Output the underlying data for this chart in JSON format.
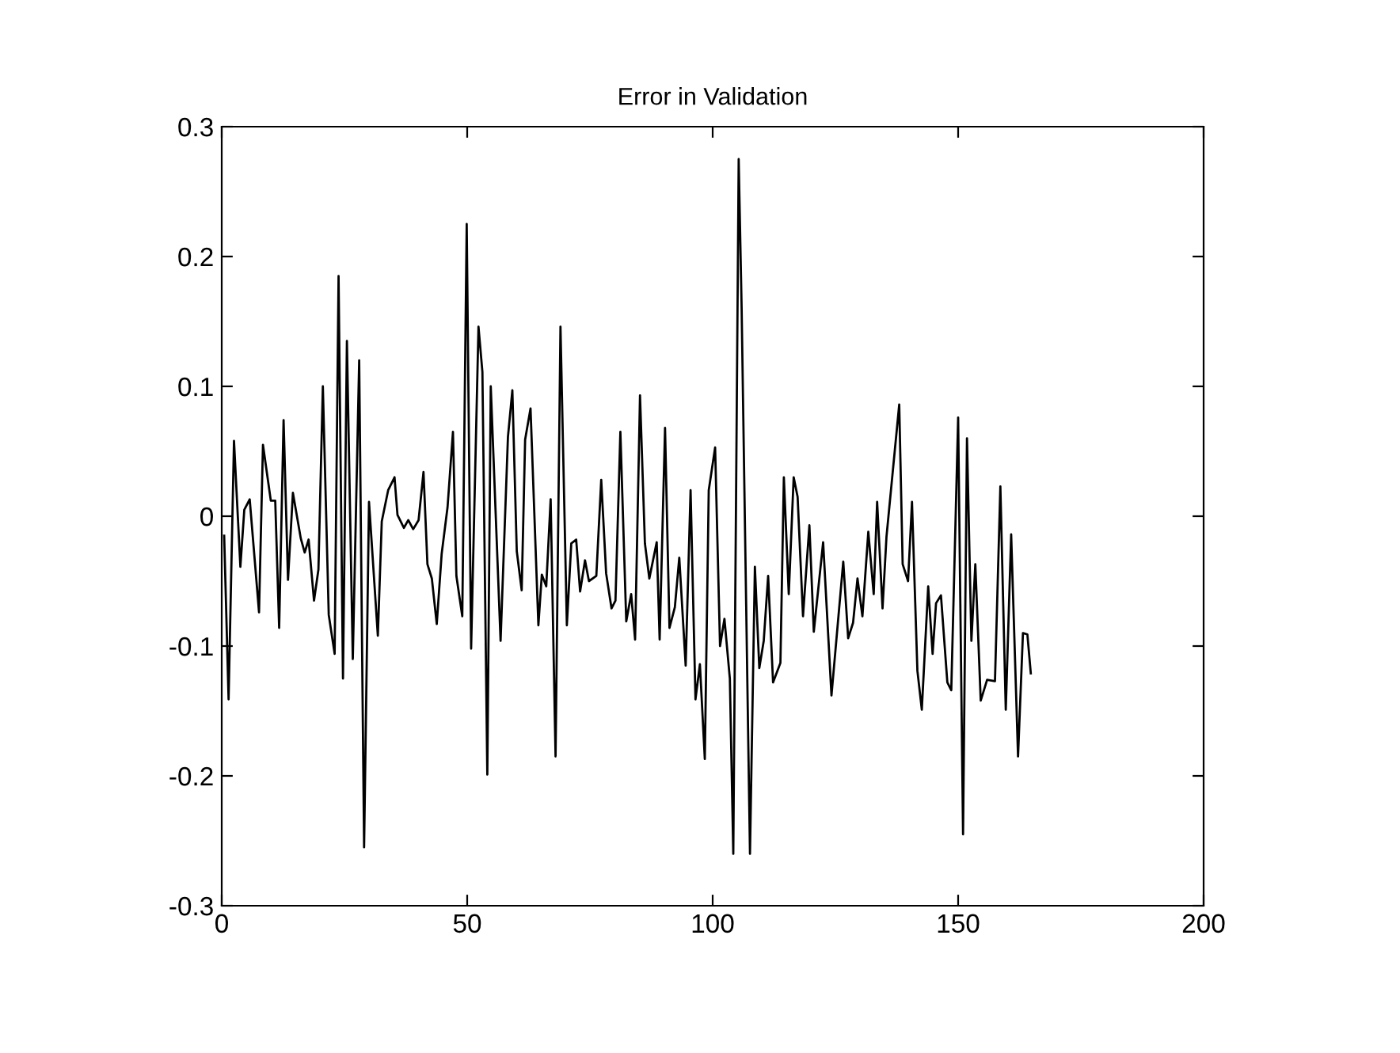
{
  "chart_data": {
    "type": "line",
    "title": "Error in Validation",
    "x": [
      0.5,
      1.4,
      2.5,
      3.8,
      4.6,
      5.7,
      7.6,
      8.4,
      10,
      10.9,
      11.7,
      12.6,
      13.5,
      14.5,
      16.1,
      16.9,
      17.7,
      18.8,
      19.7,
      20.6,
      21.8,
      23,
      23.8,
      24.7,
      25.5,
      26.7,
      28,
      29,
      30,
      31.8,
      32.6,
      33.9,
      35.2,
      35.8,
      37.1,
      38,
      39,
      40.1,
      41.1,
      41.9,
      42.8,
      43.8,
      44.8,
      46,
      47.1,
      47.8,
      49,
      49.9,
      50.8,
      52.3,
      53.1,
      54.1,
      54.8,
      56.8,
      58.3,
      59.2,
      60.1,
      61.1,
      61.8,
      62.9,
      64.5,
      65.2,
      66.1,
      67,
      68,
      69,
      70.3,
      71.2,
      72.2,
      73,
      74,
      74.8,
      76.3,
      77.3,
      78.3,
      79.4,
      80.2,
      81.2,
      82.4,
      83.4,
      84.2,
      85.2,
      86.2,
      87.1,
      88.6,
      89.2,
      90.3,
      91.2,
      92.3,
      93.2,
      94.5,
      95.5,
      96.5,
      97.4,
      98.4,
      99.2,
      100.5,
      101.5,
      102.4,
      103.5,
      104.2,
      105.3,
      105.9,
      107.6,
      108.6,
      109.5,
      110.4,
      111.3,
      112.3,
      113.8,
      114.5,
      115.5,
      116.5,
      117.3,
      118.4,
      119.7,
      120.6,
      122.5,
      124.2,
      126.6,
      127.6,
      128.6,
      129.5,
      130.5,
      131.7,
      132.8,
      133.5,
      134.6,
      135.4,
      138,
      138.7,
      139.8,
      140.6,
      141.7,
      142.6,
      143.9,
      144.8,
      145.5,
      146.5,
      147.8,
      148.6,
      150,
      151,
      151.8,
      152.7,
      153.5,
      154.6,
      155.9,
      157.5,
      158.6,
      159.7,
      160.8,
      162.2,
      163.2,
      164.1,
      164.8
    ],
    "series": [
      {
        "color": "#000000",
        "values": [
          -0.015,
          -0.141,
          0.058,
          -0.039,
          0.005,
          0.013,
          -0.074,
          0.055,
          0.012,
          0.012,
          -0.086,
          0.074,
          -0.049,
          0.018,
          -0.017,
          -0.028,
          -0.018,
          -0.065,
          -0.041,
          0.1,
          -0.076,
          -0.106,
          0.185,
          -0.125,
          0.135,
          -0.11,
          0.12,
          -0.255,
          0.011,
          -0.092,
          -0.004,
          0.02,
          0.03,
          0.001,
          -0.009,
          -0.003,
          -0.01,
          -0.003,
          0.034,
          -0.037,
          -0.048,
          -0.083,
          -0.029,
          0.007,
          0.065,
          -0.046,
          -0.077,
          0.225,
          -0.102,
          0.146,
          0.111,
          -0.199,
          0.1,
          -0.096,
          0.061,
          0.097,
          -0.027,
          -0.057,
          0.059,
          0.083,
          -0.084,
          -0.045,
          -0.054,
          0.013,
          -0.185,
          0.146,
          -0.084,
          -0.021,
          -0.018,
          -0.058,
          -0.034,
          -0.05,
          -0.046,
          0.028,
          -0.044,
          -0.071,
          -0.065,
          0.065,
          -0.081,
          -0.06,
          -0.095,
          0.093,
          -0.021,
          -0.048,
          -0.02,
          -0.095,
          0.068,
          -0.086,
          -0.07,
          -0.032,
          -0.115,
          0.02,
          -0.141,
          -0.114,
          -0.187,
          0.02,
          0.053,
          -0.1,
          -0.079,
          -0.125,
          -0.26,
          0.275,
          0.16,
          -0.26,
          -0.039,
          -0.117,
          -0.096,
          -0.046,
          -0.128,
          -0.113,
          0.03,
          -0.06,
          0.03,
          0.015,
          -0.077,
          -0.007,
          -0.089,
          -0.02,
          -0.138,
          -0.035,
          -0.094,
          -0.082,
          -0.048,
          -0.077,
          -0.012,
          -0.06,
          0.011,
          -0.071,
          -0.016,
          0.086,
          -0.037,
          -0.05,
          0.011,
          -0.119,
          -0.149,
          -0.054,
          -0.106,
          -0.067,
          -0.061,
          -0.128,
          -0.134,
          0.076,
          -0.245,
          0.06,
          -0.096,
          -0.037,
          -0.142,
          -0.126,
          -0.127,
          0.023,
          -0.149,
          -0.014,
          -0.185,
          -0.09,
          -0.091,
          -0.121
        ]
      }
    ],
    "xlim": [
      0,
      200
    ],
    "xticks": [
      0,
      50,
      100,
      150,
      200
    ],
    "ylim": [
      -0.3,
      0.3
    ],
    "yticks": [
      -0.3,
      -0.2,
      -0.1,
      0,
      0.1,
      0.2,
      0.3
    ],
    "grid": false,
    "marker": "none",
    "line_style": "solid"
  }
}
